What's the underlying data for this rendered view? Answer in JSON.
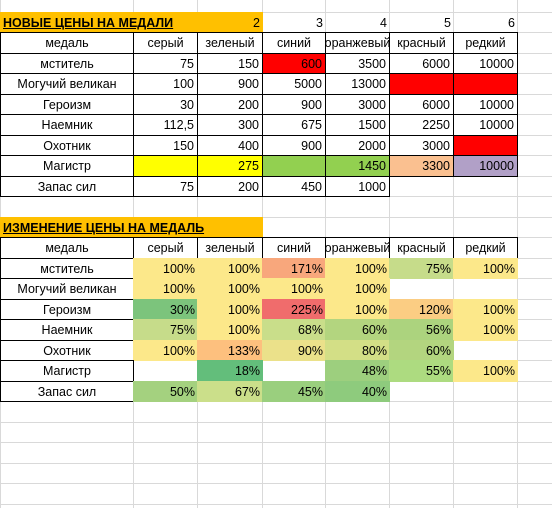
{
  "table1": {
    "title": "НОВЫЕ ЦЕНЫ НА МЕДАЛИ",
    "numbers": [
      "2",
      "3",
      "4",
      "5",
      "6"
    ],
    "header": [
      "медаль",
      "серый",
      "зеленый",
      "синий",
      "оранжевый",
      "красный",
      "редкий"
    ],
    "rows": [
      {
        "cells": [
          "мститель",
          "75",
          "150",
          "600",
          "3500",
          "6000",
          "10000"
        ],
        "fills": [
          null,
          null,
          null,
          "#ff0000",
          null,
          null,
          null
        ]
      },
      {
        "cells": [
          "Могучий великан",
          "100",
          "900",
          "5000",
          "13000",
          null,
          null
        ],
        "fills": [
          null,
          null,
          null,
          null,
          null,
          "#ff0000",
          "#ff0000"
        ]
      },
      {
        "cells": [
          "Героизм",
          "30",
          "200",
          "900",
          "3000",
          "6000",
          "10000"
        ],
        "fills": [
          null,
          null,
          null,
          null,
          null,
          null,
          null
        ]
      },
      {
        "cells": [
          "Наемник",
          "112,5",
          "300",
          "675",
          "1500",
          "2250",
          "10000"
        ],
        "fills": [
          null,
          null,
          null,
          null,
          null,
          null,
          null
        ]
      },
      {
        "cells": [
          "Охотник",
          "150",
          "400",
          "900",
          "2000",
          "3000",
          null
        ],
        "fills": [
          null,
          null,
          null,
          null,
          null,
          null,
          "#ff0000"
        ]
      },
      {
        "cells": [
          "Магистр",
          null,
          "275",
          null,
          "1450",
          "3300",
          "10000"
        ],
        "fills": [
          null,
          "#ffff00",
          "#ffff00",
          "#92d050",
          "#92d050",
          "#fac090",
          "#b1a0c7"
        ]
      },
      {
        "cells": [
          "Запас сил",
          "75",
          "200",
          "450",
          "1000",
          null,
          null
        ],
        "fills": [
          null,
          null,
          null,
          null,
          null,
          null,
          null
        ]
      }
    ]
  },
  "table2": {
    "title": "ИЗМЕНЕНИЕ ЦЕНЫ НА МЕДАЛЬ",
    "header": [
      "медаль",
      "серый",
      "зеленый",
      "синий",
      "оранжевый",
      "красный",
      "редкий"
    ],
    "rows": [
      {
        "cells": [
          "мститель",
          "100%",
          "100%",
          "171%",
          "100%",
          "75%",
          "100%"
        ],
        "fills": [
          null,
          "#fce88a",
          "#fce88a",
          "#f8a77c",
          "#fce88a",
          "#c6dc8a",
          "#fce88a"
        ]
      },
      {
        "cells": [
          "Могучий великан",
          "100%",
          "100%",
          "100%",
          "100%",
          null,
          null
        ],
        "fills": [
          null,
          "#fce88a",
          "#fce88a",
          "#fce88a",
          "#fce88a",
          null,
          null
        ]
      },
      {
        "cells": [
          "Героизм",
          "30%",
          "100%",
          "225%",
          "100%",
          "120%",
          "100%"
        ],
        "fills": [
          null,
          "#7cc47c",
          "#fce88a",
          "#f06c6c",
          "#fce88a",
          "#fbcd83",
          "#fce88a"
        ]
      },
      {
        "cells": [
          "Наемник",
          "75%",
          "100%",
          "68%",
          "60%",
          "56%",
          "100%"
        ],
        "fills": [
          null,
          "#c6dc8a",
          "#fce88a",
          "#c9de8a",
          "#b3d57f",
          "#acd37e",
          "#fce88a"
        ]
      },
      {
        "cells": [
          "Охотник",
          "100%",
          "133%",
          "90%",
          "80%",
          "60%",
          null
        ],
        "fills": [
          null,
          "#fce88a",
          "#fdc07e",
          "#ebe18a",
          "#d3df86",
          "#b3d57f",
          null
        ]
      },
      {
        "cells": [
          "Магистр",
          null,
          "18%",
          null,
          "48%",
          "55%",
          "100%"
        ],
        "fills": [
          null,
          null,
          "#63be7b",
          null,
          "#9dcf7e",
          "#addb80",
          "#fce88a"
        ]
      },
      {
        "cells": [
          "Запас сил",
          "50%",
          "67%",
          "45%",
          "40%",
          null,
          null
        ],
        "fills": [
          null,
          "#a4d17f",
          "#cbdf8a",
          "#9acf7e",
          "#8ecb7d",
          null,
          null
        ]
      }
    ]
  }
}
